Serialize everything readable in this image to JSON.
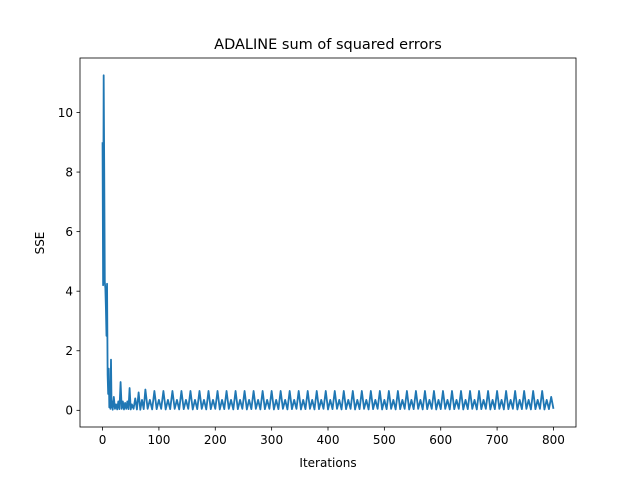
{
  "chart_data": {
    "type": "line",
    "title": "ADALINE sum of squared errors",
    "xlabel": "Iterations",
    "ylabel": "SSE",
    "xlim": [
      -40,
      840
    ],
    "ylim": [
      -0.56,
      11.83
    ],
    "xticks": [
      0,
      100,
      200,
      300,
      400,
      500,
      600,
      700,
      800
    ],
    "yticks": [
      0,
      2,
      4,
      6,
      8,
      10
    ],
    "grid": false,
    "legend": "none",
    "series": [
      {
        "color": "#1f77b4",
        "x": [
          0,
          1,
          2,
          3,
          4,
          5,
          6,
          7,
          8,
          9,
          10,
          11,
          12,
          13,
          14,
          15,
          16,
          17,
          18,
          20,
          22,
          24,
          26,
          28,
          30,
          32,
          34,
          36,
          38,
          40,
          42,
          44,
          46,
          48,
          50,
          52,
          55,
          58,
          61,
          64,
          67,
          70,
          73,
          76,
          80,
          84,
          88,
          92,
          96,
          100,
          104,
          108,
          112,
          116,
          120,
          124,
          128,
          132,
          136,
          140,
          144,
          148,
          152,
          156,
          160,
          164,
          168,
          172,
          176,
          180,
          184,
          188,
          192,
          196,
          200,
          204,
          208,
          212,
          216,
          220,
          224,
          228,
          232,
          236,
          240,
          244,
          248,
          252,
          256,
          260,
          264,
          268,
          272,
          276,
          280,
          284,
          288,
          292,
          296,
          300,
          304,
          308,
          312,
          316,
          320,
          324,
          328,
          332,
          336,
          340,
          344,
          348,
          352,
          356,
          360,
          364,
          368,
          372,
          376,
          380,
          384,
          388,
          392,
          396,
          400,
          404,
          408,
          412,
          416,
          420,
          424,
          428,
          432,
          436,
          440,
          444,
          448,
          452,
          456,
          460,
          464,
          468,
          472,
          476,
          480,
          484,
          488,
          492,
          496,
          500,
          504,
          508,
          512,
          516,
          520,
          524,
          528,
          532,
          536,
          540,
          544,
          548,
          552,
          556,
          560,
          564,
          568,
          572,
          576,
          580,
          584,
          588,
          592,
          596,
          600,
          604,
          608,
          612,
          616,
          620,
          624,
          628,
          632,
          636,
          640,
          644,
          648,
          652,
          656,
          660,
          664,
          668,
          672,
          676,
          680,
          684,
          688,
          692,
          696,
          700,
          704,
          708,
          712,
          716,
          720,
          724,
          728,
          732,
          736,
          740,
          744,
          748,
          752,
          756,
          760,
          764,
          768,
          772,
          776,
          780,
          784,
          788,
          792,
          796,
          800
        ],
        "y": [
          9.0,
          4.2,
          11.25,
          8.0,
          4.3,
          4.1,
          3.4,
          2.5,
          4.25,
          1.2,
          0.55,
          1.4,
          0.1,
          0.6,
          0.05,
          1.7,
          0.1,
          0.3,
          0.02,
          0.45,
          0.05,
          0.2,
          0.03,
          0.3,
          0.04,
          0.95,
          0.05,
          0.3,
          0.03,
          0.25,
          0.05,
          0.3,
          0.04,
          0.75,
          0.03,
          0.2,
          0.05,
          0.4,
          0.03,
          0.6,
          0.02,
          0.35,
          0.04,
          0.7,
          0.05,
          0.35,
          0.03,
          0.65,
          0.04,
          0.35,
          0.05,
          0.65,
          0.03,
          0.35,
          0.04,
          0.65,
          0.05,
          0.35,
          0.03,
          0.65,
          0.04,
          0.35,
          0.05,
          0.65,
          0.03,
          0.35,
          0.04,
          0.65,
          0.05,
          0.35,
          0.03,
          0.65,
          0.04,
          0.35,
          0.05,
          0.65,
          0.03,
          0.35,
          0.04,
          0.65,
          0.05,
          0.35,
          0.03,
          0.65,
          0.04,
          0.35,
          0.05,
          0.65,
          0.03,
          0.35,
          0.04,
          0.65,
          0.05,
          0.35,
          0.03,
          0.65,
          0.04,
          0.35,
          0.05,
          0.65,
          0.03,
          0.35,
          0.04,
          0.65,
          0.05,
          0.35,
          0.03,
          0.65,
          0.04,
          0.35,
          0.05,
          0.65,
          0.03,
          0.35,
          0.04,
          0.65,
          0.05,
          0.35,
          0.03,
          0.65,
          0.04,
          0.35,
          0.05,
          0.65,
          0.03,
          0.35,
          0.04,
          0.65,
          0.05,
          0.35,
          0.03,
          0.65,
          0.04,
          0.35,
          0.05,
          0.65,
          0.03,
          0.35,
          0.04,
          0.65,
          0.05,
          0.35,
          0.03,
          0.65,
          0.04,
          0.35,
          0.05,
          0.65,
          0.03,
          0.35,
          0.04,
          0.65,
          0.05,
          0.35,
          0.03,
          0.65,
          0.04,
          0.35,
          0.05,
          0.65,
          0.03,
          0.35,
          0.04,
          0.65,
          0.05,
          0.35,
          0.03,
          0.65,
          0.04,
          0.35,
          0.05,
          0.65,
          0.03,
          0.35,
          0.04,
          0.65,
          0.05,
          0.35,
          0.03,
          0.65,
          0.04,
          0.35,
          0.05,
          0.65,
          0.03,
          0.35,
          0.04,
          0.65,
          0.05,
          0.35,
          0.03,
          0.65,
          0.04,
          0.35,
          0.05,
          0.65,
          0.03,
          0.35,
          0.04,
          0.65,
          0.05,
          0.35,
          0.03,
          0.65,
          0.04,
          0.35,
          0.05,
          0.65,
          0.03,
          0.35,
          0.04,
          0.65,
          0.05,
          0.35,
          0.03,
          0.65,
          0.04,
          0.35,
          0.05,
          0.65,
          0.03,
          0.35,
          0.04,
          0.45,
          0.05
        ]
      }
    ]
  }
}
